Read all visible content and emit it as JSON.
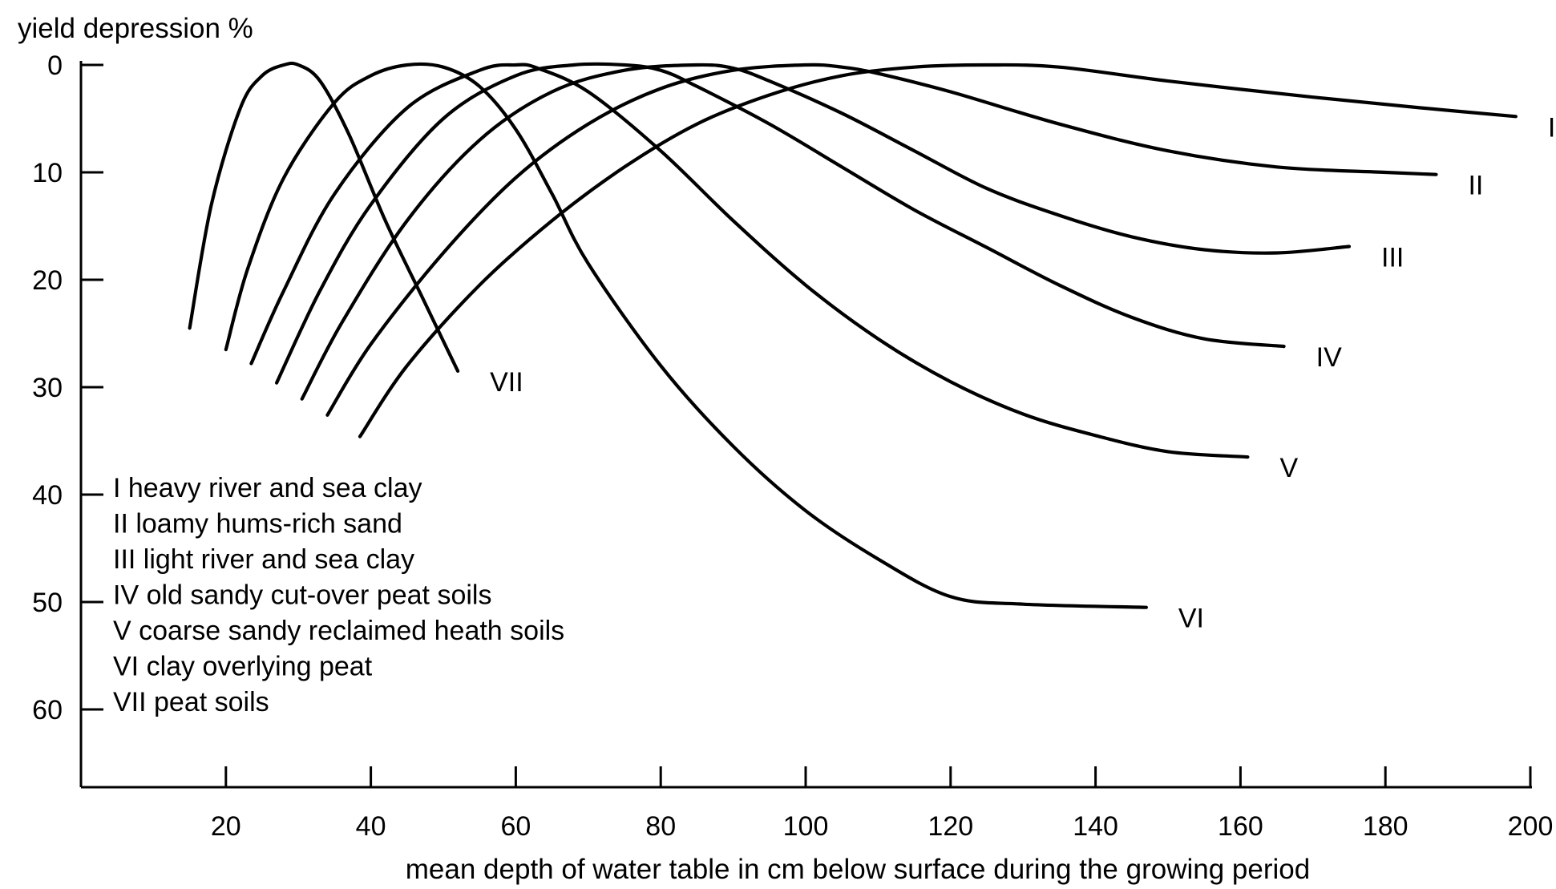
{
  "chart_data": {
    "type": "line",
    "title": "",
    "ylabel": "yield depression %",
    "xlabel": "mean depth of water table in cm below surface during the growing period",
    "xlim": [
      0,
      200
    ],
    "ylim": [
      0,
      67
    ],
    "y_inverted": true,
    "grid": false,
    "x_ticks": [
      20,
      40,
      60,
      80,
      100,
      120,
      140,
      160,
      180,
      200
    ],
    "x_tick_labels": [
      "20",
      "40",
      "60",
      "80",
      "100",
      "120",
      "140",
      "160",
      "180",
      "200"
    ],
    "y_ticks": [
      0,
      10,
      20,
      30,
      40,
      50,
      60
    ],
    "y_tick_labels": [
      "0",
      "10",
      "20",
      "30",
      "40",
      "50",
      "60"
    ],
    "legend_position": "bottom-left",
    "legend": [
      "I  heavy river and sea clay",
      "II  loamy hums-rich sand",
      "III  light river and sea clay",
      "IV old sandy cut-over peat soils",
      "V  coarse sandy reclaimed heath soils",
      "VI clay overlying peat",
      "VII peat soils"
    ],
    "series": [
      {
        "name": "I",
        "x": [
          38.5,
          45,
          55,
          65,
          75,
          85,
          95,
          105,
          115,
          125,
          135,
          150,
          170,
          185,
          198
        ],
        "y": [
          34.6,
          28,
          20.5,
          14.5,
          9.5,
          5.5,
          2.8,
          1,
          0.2,
          0,
          0.2,
          1.5,
          3,
          4,
          4.8
        ]
      },
      {
        "name": "II",
        "x": [
          34,
          40,
          50,
          60,
          70,
          80,
          90,
          100,
          105,
          110,
          120,
          135,
          150,
          165,
          180,
          187
        ],
        "y": [
          32.6,
          26,
          17.5,
          10.5,
          5.5,
          2.2,
          0.5,
          0,
          0.2,
          0.8,
          2.5,
          5.5,
          8,
          9.5,
          10,
          10.2
        ]
      },
      {
        "name": "III",
        "x": [
          30.5,
          36,
          45,
          55,
          65,
          75,
          85,
          90,
          95,
          105,
          115,
          125,
          135,
          145,
          155,
          165,
          175
        ],
        "y": [
          31.1,
          24,
          14.5,
          7,
          2.5,
          0.5,
          0,
          0.3,
          1.5,
          4.5,
          8,
          11.5,
          14,
          16,
          17.2,
          17.5,
          16.9
        ]
      },
      {
        "name": "IV",
        "x": [
          27,
          33,
          40,
          50,
          60,
          68,
          75,
          80,
          85,
          95,
          105,
          115,
          125,
          135,
          145,
          155,
          166
        ],
        "y": [
          29.6,
          21,
          13,
          5,
          1,
          0,
          0,
          0.5,
          2,
          5.5,
          9.5,
          13.5,
          17,
          20.5,
          23.5,
          25.5,
          26.2
        ]
      },
      {
        "name": "V",
        "x": [
          23.5,
          28,
          35,
          45,
          55,
          60,
          63,
          70,
          80,
          90,
          100,
          110,
          120,
          130,
          140,
          150,
          161
        ],
        "y": [
          27.8,
          21,
          12,
          4,
          0.5,
          0,
          0.3,
          2.5,
          8,
          14.5,
          20.5,
          25.5,
          29.5,
          32.5,
          34.5,
          36,
          36.5
        ]
      },
      {
        "name": "VI",
        "x": [
          20,
          23,
          28,
          35,
          40,
          45,
          50,
          55,
          60,
          65,
          70,
          80,
          90,
          100,
          110,
          120,
          130,
          147
        ],
        "y": [
          26.5,
          19,
          10.5,
          3.5,
          1,
          0,
          0.2,
          2,
          6,
          12,
          18.5,
          28,
          35.5,
          41.5,
          46,
          49.5,
          50.2,
          50.5
        ]
      },
      {
        "name": "VII",
        "x": [
          15,
          18,
          22,
          25,
          28,
          30,
          33,
          37,
          42,
          47,
          52
        ],
        "y": [
          24.5,
          13,
          4,
          1,
          0,
          0,
          1.5,
          6.5,
          14.5,
          21.5,
          28.5
        ]
      }
    ]
  }
}
